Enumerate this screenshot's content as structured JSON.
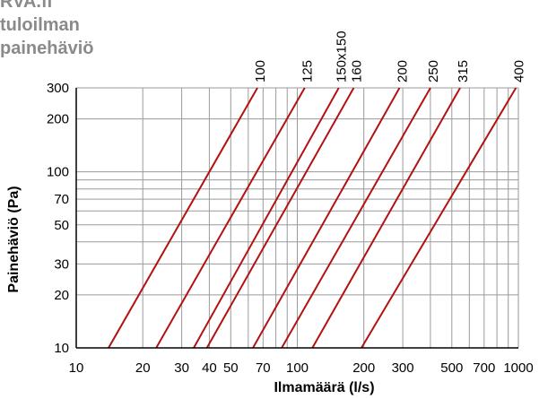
{
  "title_lines": [
    "RVA.fi",
    "tuloilman",
    "painehäviö"
  ],
  "colors": {
    "line": "#b31212",
    "grid": "#9a9a9a",
    "axis": "#000000",
    "title": "#8a8a8a"
  },
  "chart_data": {
    "type": "line",
    "title": "RVA.fi tuloilman painehäviö",
    "xlabel": "Ilmamäärä (l/s)",
    "ylabel": "Painehäviö (Pa)",
    "xscale": "log",
    "yscale": "log",
    "xlim": [
      10,
      1000
    ],
    "ylim": [
      10,
      300
    ],
    "grid": true,
    "x_ticks": [
      10,
      20,
      30,
      40,
      50,
      70,
      100,
      200,
      300,
      500,
      700,
      1000
    ],
    "x_tick_labels": [
      "10",
      "20",
      "30",
      "40",
      "50",
      "70",
      "100",
      "200",
      "300",
      "500",
      "700",
      "1000"
    ],
    "y_ticks": [
      10,
      20,
      30,
      50,
      70,
      100,
      200,
      300
    ],
    "y_tick_labels": [
      "10",
      "20",
      "30",
      "50",
      "70",
      "100",
      "200",
      "300"
    ],
    "x_gridlines": [
      10,
      20,
      30,
      40,
      50,
      60,
      70,
      80,
      90,
      100,
      200,
      300,
      400,
      500,
      600,
      700,
      800,
      900,
      1000
    ],
    "y_gridlines": [
      10,
      20,
      30,
      40,
      50,
      60,
      70,
      80,
      90,
      100,
      200,
      300
    ],
    "series": [
      {
        "name": "100",
        "points": [
          [
            14,
            10
          ],
          [
            66,
            300
          ]
        ]
      },
      {
        "name": "125",
        "points": [
          [
            23,
            10
          ],
          [
            108,
            300
          ]
        ]
      },
      {
        "name": "150x150",
        "points": [
          [
            34,
            10
          ],
          [
            154,
            300
          ]
        ]
      },
      {
        "name": "160",
        "points": [
          [
            39,
            10
          ],
          [
            180,
            300
          ]
        ]
      },
      {
        "name": "200",
        "points": [
          [
            63,
            10
          ],
          [
            290,
            300
          ]
        ]
      },
      {
        "name": "250",
        "points": [
          [
            85,
            10
          ],
          [
            400,
            300
          ]
        ]
      },
      {
        "name": "315",
        "points": [
          [
            117,
            10
          ],
          [
            545,
            300
          ]
        ]
      },
      {
        "name": "400",
        "points": [
          [
            195,
            10
          ],
          [
            975,
            300
          ]
        ]
      }
    ]
  }
}
